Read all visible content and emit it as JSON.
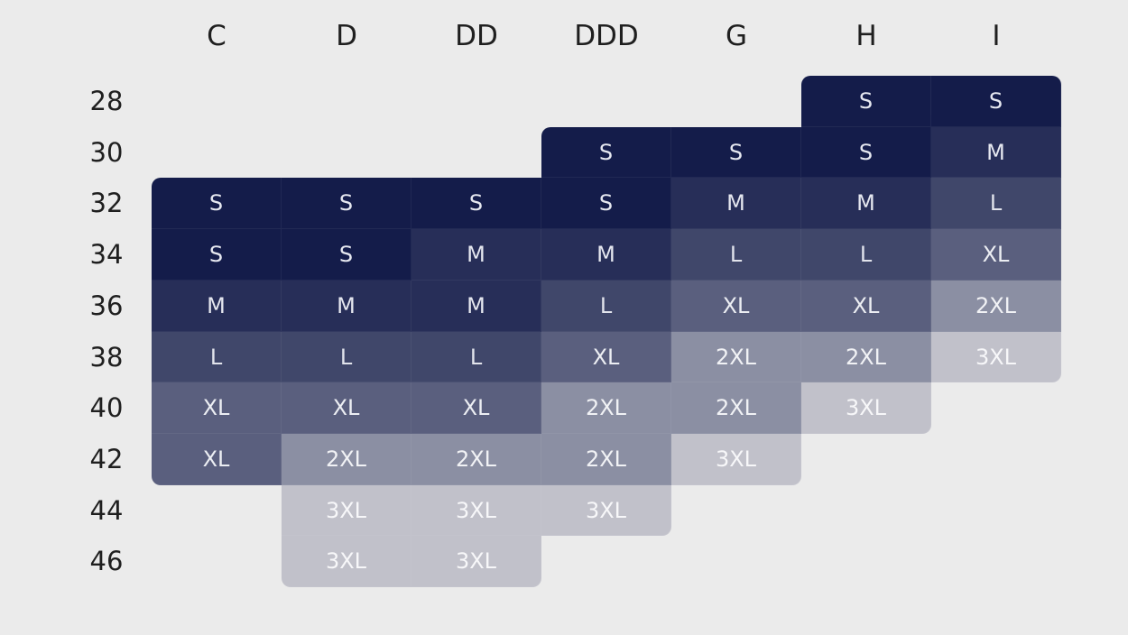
{
  "chart_data": {
    "type": "table",
    "columns": [
      "C",
      "D",
      "DD",
      "DDD",
      "G",
      "H",
      "I"
    ],
    "rows": [
      "28",
      "30",
      "32",
      "34",
      "36",
      "38",
      "40",
      "42",
      "44",
      "46"
    ],
    "cells": [
      [
        "",
        "",
        "",
        "",
        "",
        "S",
        "S"
      ],
      [
        "",
        "",
        "",
        "S",
        "S",
        "S",
        "M"
      ],
      [
        "S",
        "S",
        "S",
        "S",
        "M",
        "M",
        "L"
      ],
      [
        "S",
        "S",
        "M",
        "M",
        "L",
        "L",
        "XL"
      ],
      [
        "M",
        "M",
        "M",
        "L",
        "XL",
        "XL",
        "2XL"
      ],
      [
        "L",
        "L",
        "L",
        "XL",
        "2XL",
        "2XL",
        "3XL"
      ],
      [
        "XL",
        "XL",
        "XL",
        "2XL",
        "2XL",
        "3XL",
        ""
      ],
      [
        "XL",
        "2XL",
        "2XL",
        "2XL",
        "3XL",
        "",
        ""
      ],
      [
        "",
        "3XL",
        "3XL",
        "3XL",
        "",
        "",
        ""
      ],
      [
        "",
        "3XL",
        "3XL",
        "",
        "",
        "",
        ""
      ]
    ],
    "size_colors": {
      "S": "#141c4a",
      "M": "#272e58",
      "L": "#40476a",
      "XL": "#5a5f7e",
      "2XL": "#8b8fa3",
      "3XL": "#c1c1ca"
    },
    "text_colors": {
      "S": "#e6e8f0",
      "M": "#e6e8f0",
      "L": "#e2e4ec",
      "XL": "#eceef3",
      "2XL": "#f1f2f5",
      "3XL": "#f7f7f9"
    }
  }
}
